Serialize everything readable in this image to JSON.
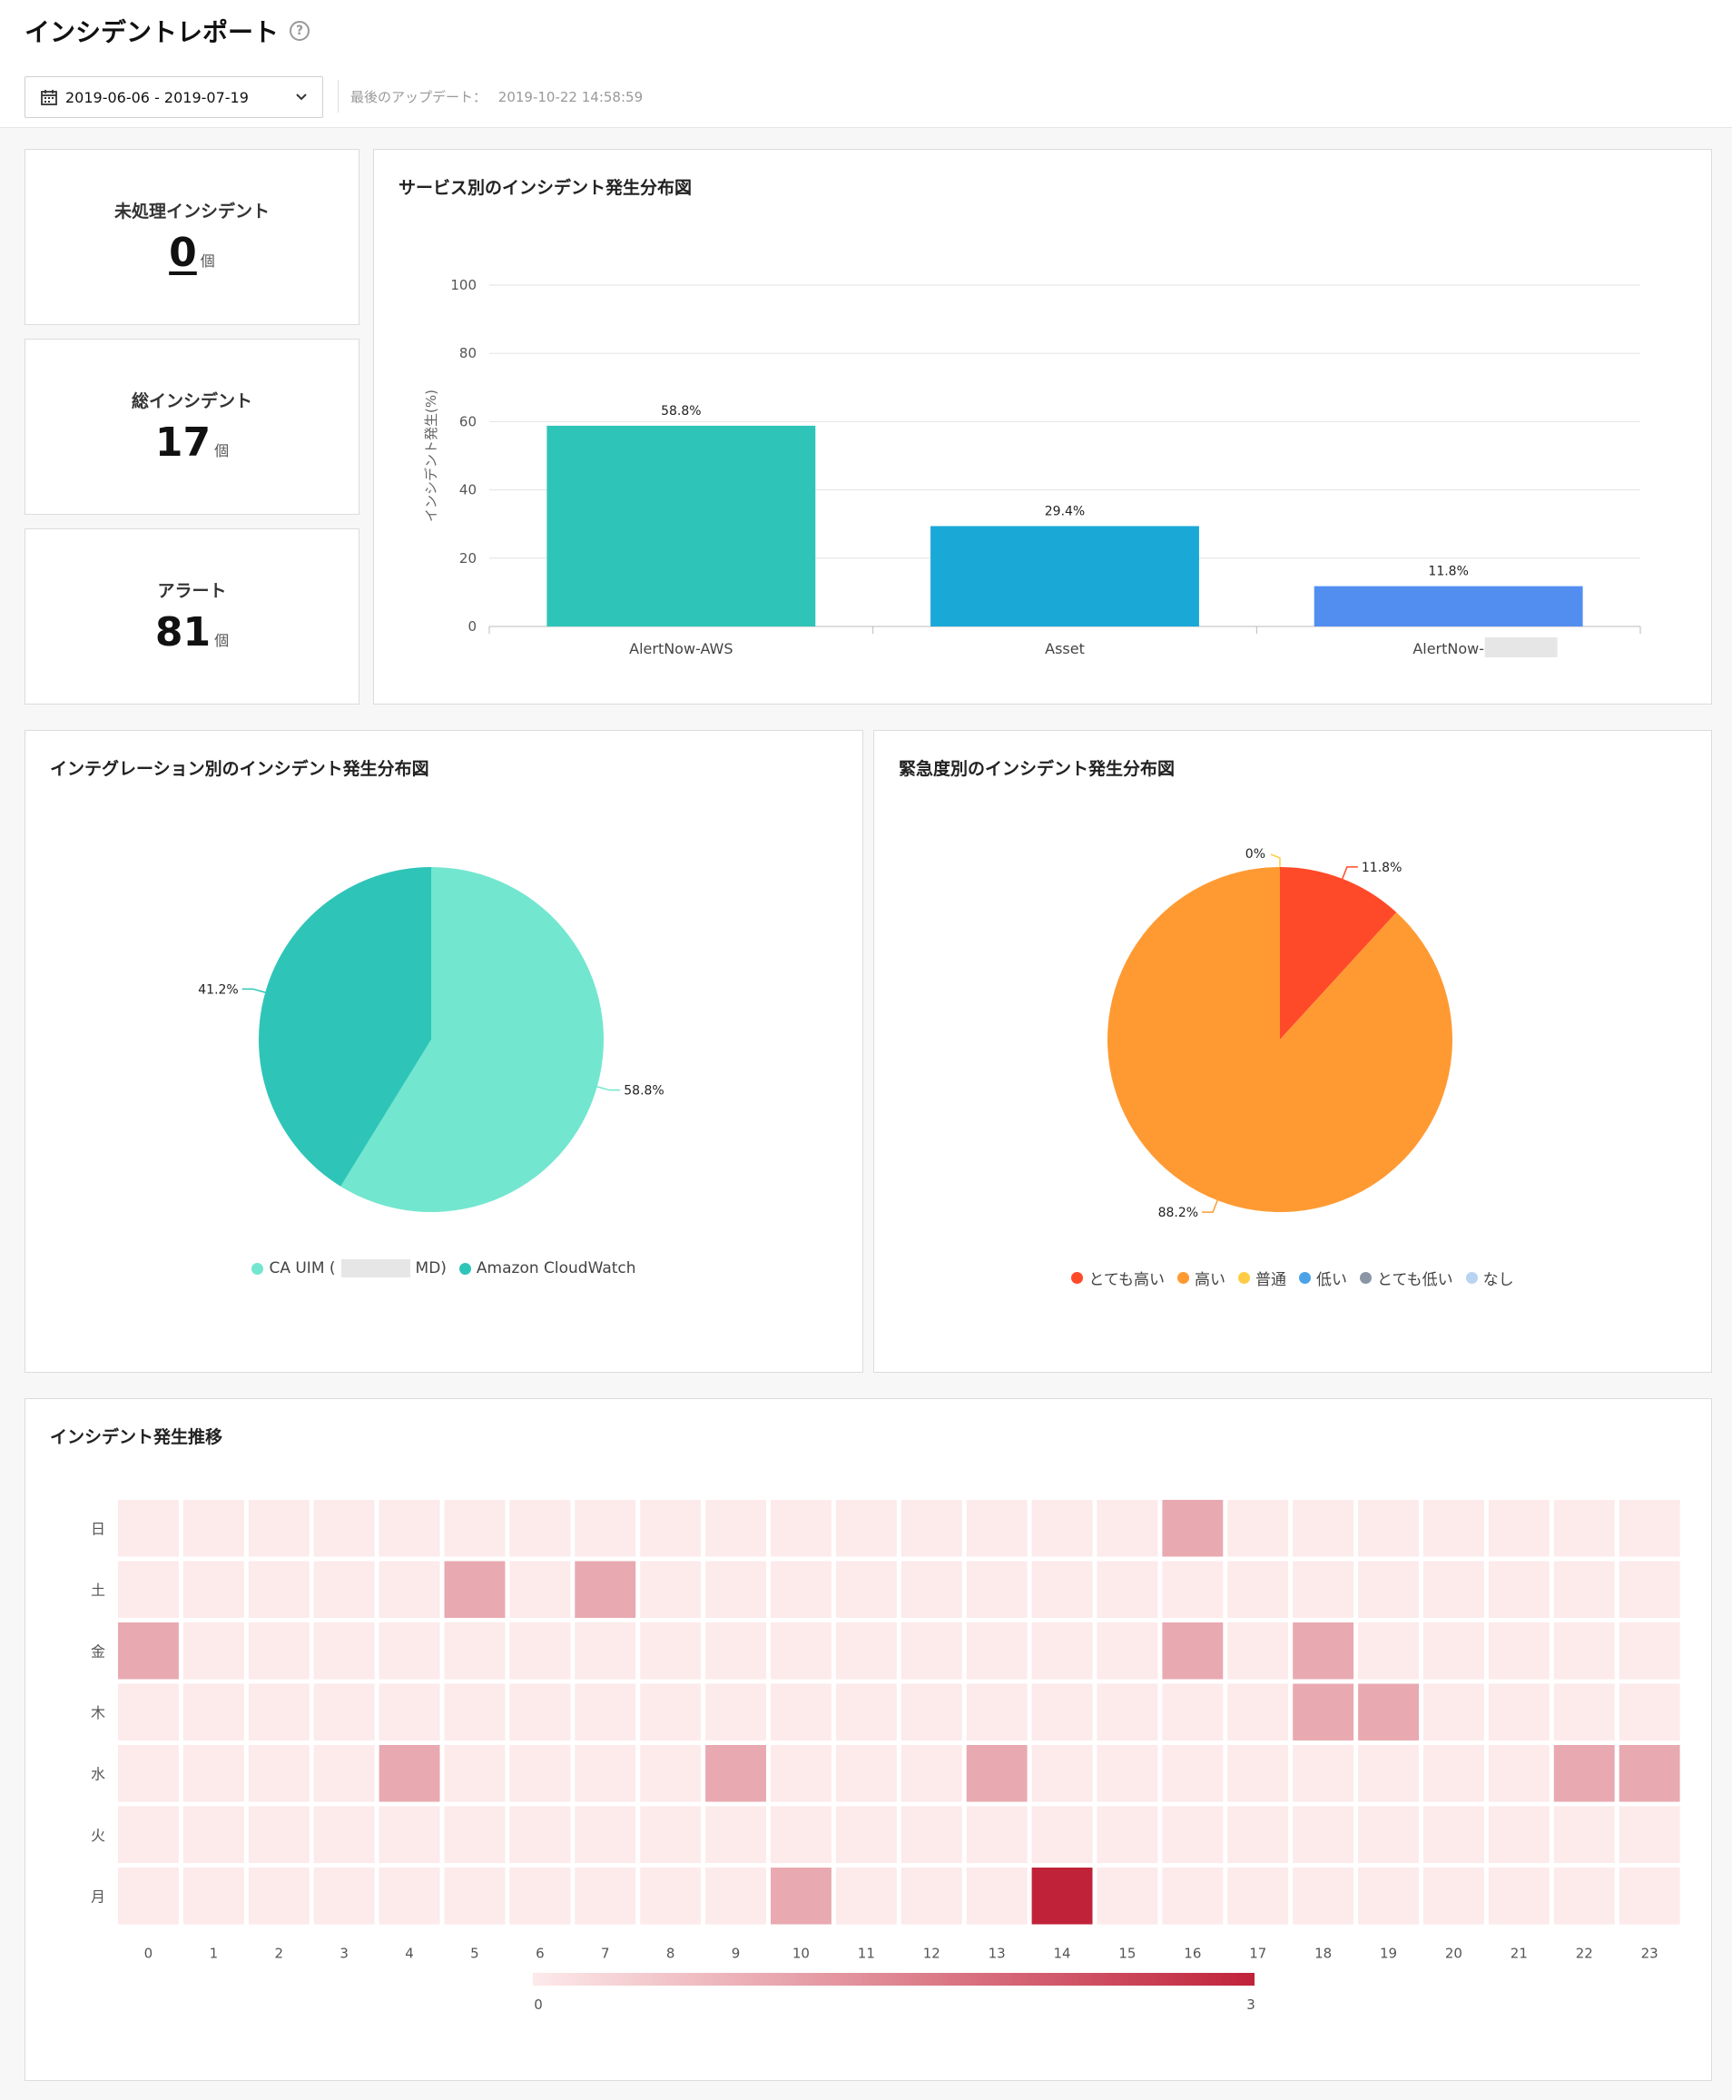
{
  "header": {
    "title": "インシデントレポート",
    "help": "?",
    "date_range": "2019-06-06 - 2019-07-19",
    "last_update_label": "最後のアップデート：",
    "last_update_value": "2019-10-22 14:58:59"
  },
  "stats": [
    {
      "label": "未処理インシデント",
      "value": "0",
      "unit": "個"
    },
    {
      "label": "総インシデント",
      "value": "17",
      "unit": "個"
    },
    {
      "label": "アラート",
      "value": "81",
      "unit": "個"
    }
  ],
  "bar_card": {
    "title": "サービス別のインシデント発生分布図",
    "chart_data": {
      "type": "bar",
      "categories": [
        "AlertNow-AWS",
        "Asset",
        "AlertNow-"
      ],
      "values": [
        58.8,
        29.4,
        11.8
      ],
      "value_labels": [
        "58.8%",
        "29.4%",
        "11.8%"
      ],
      "colors": [
        "#2ec5b8",
        "#1aa9d7",
        "#528ef0"
      ],
      "ylabel": "インシデント発生(%)",
      "ylim": [
        0,
        100
      ],
      "yticks": [
        0,
        20,
        40,
        60,
        80,
        100
      ]
    }
  },
  "integration_card": {
    "title": "インテグレーション別のインシデント発生分布図",
    "chart_data": {
      "type": "pie",
      "labels": [
        "CA UIM (",
        "Amazon CloudWatch"
      ],
      "label_suffix": [
        "MD)",
        ""
      ],
      "values": [
        58.8,
        41.2
      ],
      "value_labels": [
        "58.8%",
        "41.2%"
      ],
      "colors": [
        "#73e6cf",
        "#2ec5b8"
      ]
    }
  },
  "severity_card": {
    "title": "緊急度別のインシデント発生分布図",
    "chart_data": {
      "type": "pie",
      "labels": [
        "とても高い",
        "高い",
        "普通",
        "低い",
        "とても低い",
        "なし"
      ],
      "values": [
        11.8,
        88.2,
        0,
        0,
        0,
        0
      ],
      "shown_labels": [
        "11.8%",
        "88.2%",
        "0%"
      ],
      "colors": [
        "#ff4a2a",
        "#ff9a33",
        "#ffcc44",
        "#4aa3e8",
        "#8a95a5",
        "#b9d3f2"
      ]
    }
  },
  "heatmap_card": {
    "title": "インシデント発生推移",
    "chart_data": {
      "type": "heatmap",
      "rows": [
        "日",
        "土",
        "金",
        "木",
        "水",
        "火",
        "月"
      ],
      "cols": [
        "0",
        "1",
        "2",
        "3",
        "4",
        "5",
        "6",
        "7",
        "8",
        "9",
        "10",
        "11",
        "12",
        "13",
        "14",
        "15",
        "16",
        "17",
        "18",
        "19",
        "20",
        "21",
        "22",
        "23"
      ],
      "values": [
        [
          0,
          0,
          0,
          0,
          0,
          0,
          0,
          0,
          0,
          0,
          0,
          0,
          0,
          0,
          0,
          0,
          1,
          0,
          0,
          0,
          0,
          0,
          0,
          0
        ],
        [
          0,
          0,
          0,
          0,
          0,
          1,
          0,
          1,
          0,
          0,
          0,
          0,
          0,
          0,
          0,
          0,
          0,
          0,
          0,
          0,
          0,
          0,
          0,
          0
        ],
        [
          1,
          0,
          0,
          0,
          0,
          0,
          0,
          0,
          0,
          0,
          0,
          0,
          0,
          0,
          0,
          0,
          1,
          0,
          1,
          0,
          0,
          0,
          0,
          0
        ],
        [
          0,
          0,
          0,
          0,
          0,
          0,
          0,
          0,
          0,
          0,
          0,
          0,
          0,
          0,
          0,
          0,
          0,
          0,
          1,
          1,
          0,
          0,
          0,
          0
        ],
        [
          0,
          0,
          0,
          0,
          1,
          0,
          0,
          0,
          0,
          1,
          0,
          0,
          0,
          1,
          0,
          0,
          0,
          0,
          0,
          0,
          0,
          0,
          1,
          1
        ],
        [
          0,
          0,
          0,
          0,
          0,
          0,
          0,
          0,
          0,
          0,
          0,
          0,
          0,
          0,
          0,
          0,
          0,
          0,
          0,
          0,
          0,
          0,
          0,
          0
        ],
        [
          0,
          0,
          0,
          0,
          0,
          0,
          0,
          0,
          0,
          0,
          1,
          0,
          0,
          0,
          3,
          0,
          0,
          0,
          0,
          0,
          0,
          0,
          0,
          0
        ]
      ],
      "scale_min": "0",
      "scale_max": "3",
      "min_color": "#fdeaea",
      "max_color": "#c0223a"
    }
  }
}
